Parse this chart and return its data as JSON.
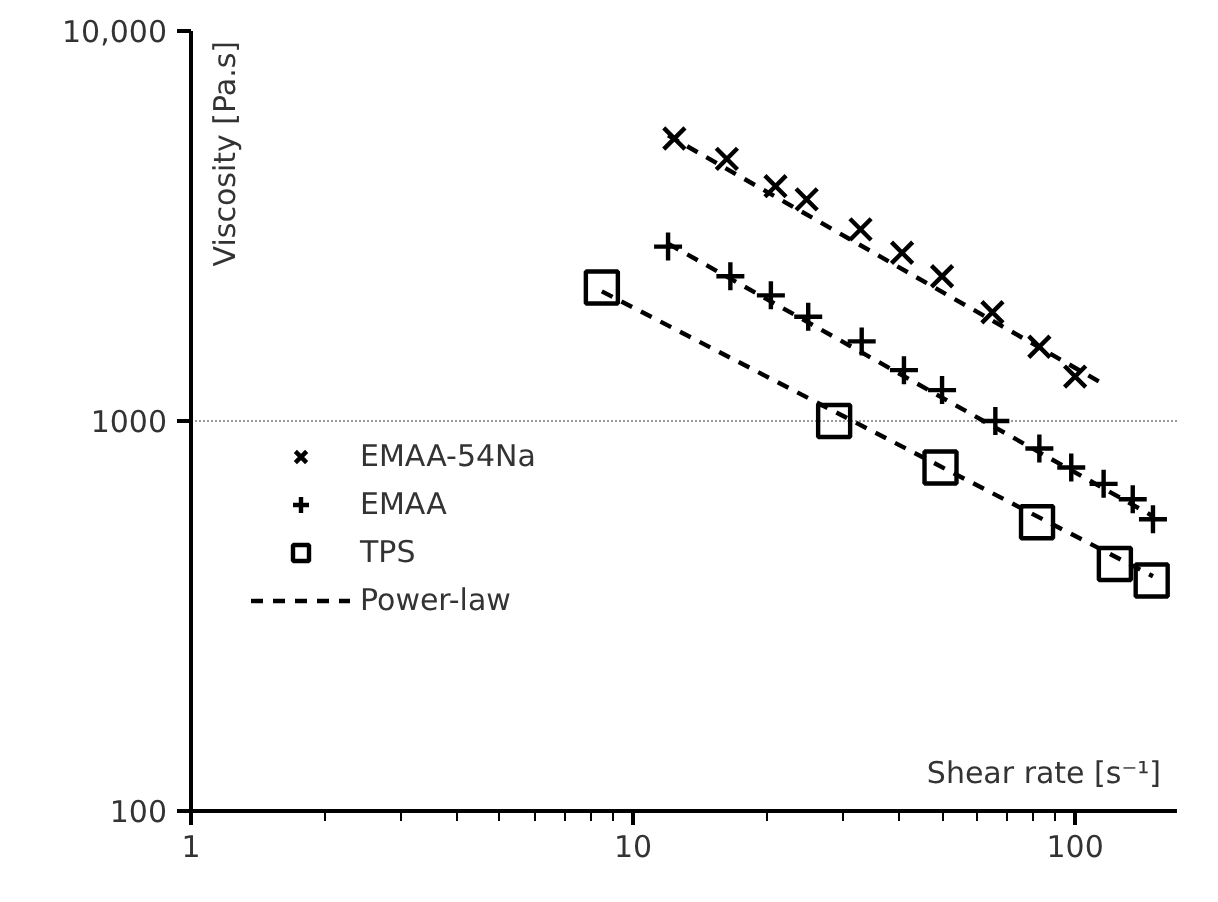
{
  "chart_data": {
    "type": "scatter",
    "xlabel": "Shear rate [s⁻¹]",
    "ylabel": "Viscosity [Pa.s]",
    "log": "xy",
    "xlim": [
      1,
      170
    ],
    "xticks": [
      1,
      10,
      100
    ],
    "ylim": [
      100,
      10000
    ],
    "yticks": [
      100,
      1000,
      {
        "value": 10000,
        "label": "10,000"
      }
    ],
    "grid": "y",
    "legend": "left",
    "series": [
      {
        "name": "EMAA-54Na",
        "color": "#000000",
        "marker": "cross",
        "x": [
          12.4,
          16.3,
          21,
          24.7,
          32.7,
          40.6,
          50,
          65,
          83,
          100
        ],
        "values": [
          5300,
          4700,
          4000,
          3700,
          3100,
          2700,
          2350,
          1900,
          1550,
          1300
        ]
      },
      {
        "name": "EMAA",
        "color": "#000000",
        "marker": "plus",
        "x": [
          12,
          16.6,
          20.5,
          24.9,
          32.9,
          41,
          50,
          66,
          83,
          98,
          116,
          135,
          150
        ],
        "values": [
          2800,
          2350,
          2100,
          1850,
          1600,
          1350,
          1200,
          1000,
          850,
          760,
          690,
          630,
          560
        ]
      },
      {
        "name": "TPS",
        "color": "#000000",
        "marker": "square",
        "x": [
          8.5,
          28.5,
          49.6,
          82,
          123,
          149
        ],
        "values": [
          2200,
          1000,
          760,
          550,
          430,
          390
        ]
      },
      {
        "name": "Power-law",
        "type": "line",
        "line_style": "dashed",
        "color": "#000000",
        "x": [
          12,
          115
        ],
        "values": [
          5400,
          1250
        ]
      },
      {
        "type": "line",
        "line_style": "dashed",
        "color": "#000000",
        "x": [
          12,
          150
        ],
        "values": [
          2850,
          570
        ]
      },
      {
        "type": "line",
        "line_style": "dashed",
        "color": "#000000",
        "x": [
          8.5,
          150
        ],
        "values": [
          2150,
          400
        ]
      }
    ]
  }
}
